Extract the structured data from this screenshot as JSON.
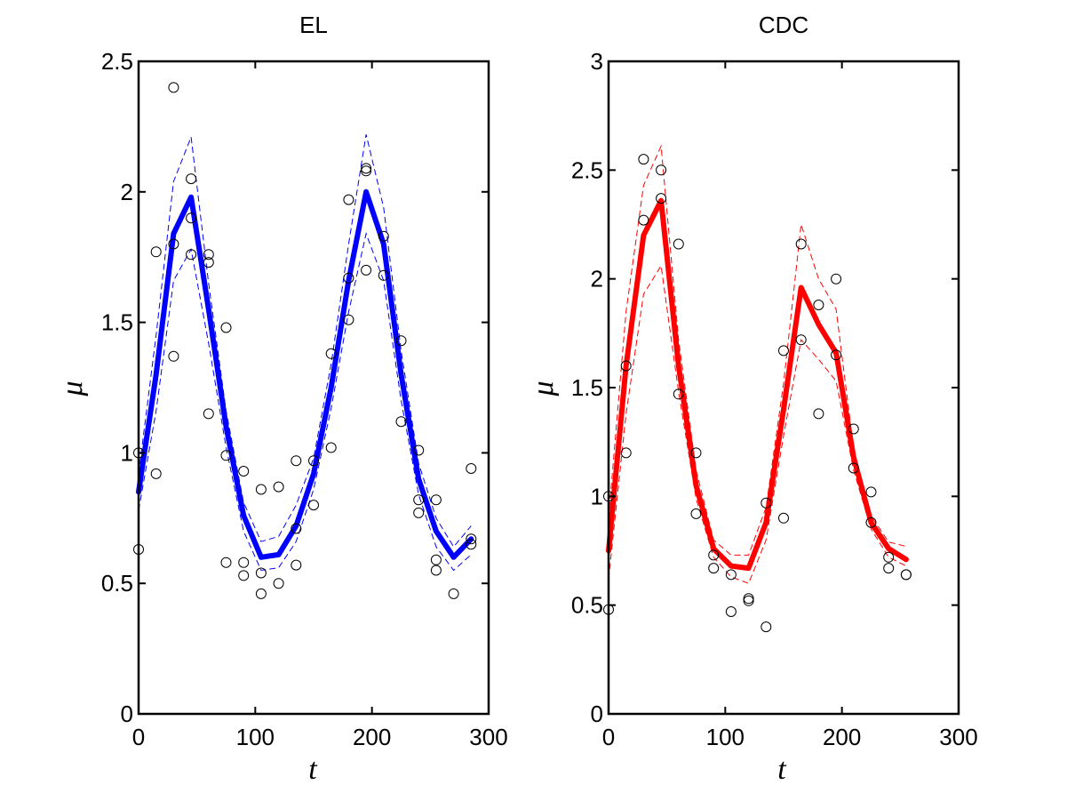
{
  "chart_data": [
    {
      "type": "line",
      "title": "EL",
      "xlabel": "t",
      "ylabel": "μ",
      "xlim": [
        0,
        300
      ],
      "ylim": [
        0,
        2.5
      ],
      "xticks": [
        "0",
        "100",
        "200",
        "300"
      ],
      "yticks": [
        "0",
        "0.5",
        "1",
        "1.5",
        "2",
        "2.5"
      ],
      "color": "#0000ff",
      "grid": false,
      "mean": {
        "x": [
          0,
          15,
          30,
          45,
          60,
          75,
          90,
          105,
          120,
          135,
          150,
          165,
          180,
          195,
          210,
          225,
          240,
          255,
          270,
          285
        ],
        "y": [
          0.85,
          1.3,
          1.84,
          1.98,
          1.55,
          1.1,
          0.76,
          0.6,
          0.61,
          0.72,
          0.92,
          1.25,
          1.66,
          2.0,
          1.8,
          1.3,
          0.9,
          0.7,
          0.6,
          0.67
        ]
      },
      "upper": {
        "x": [
          0,
          15,
          30,
          45,
          60,
          75,
          90,
          105,
          120,
          135,
          150,
          165,
          180,
          195,
          210,
          225,
          240,
          255,
          270,
          285
        ],
        "y": [
          0.92,
          1.45,
          2.04,
          2.21,
          1.65,
          1.16,
          0.81,
          0.66,
          0.68,
          0.8,
          0.98,
          1.34,
          1.8,
          2.22,
          1.94,
          1.39,
          0.96,
          0.75,
          0.64,
          0.72
        ]
      },
      "lower": {
        "x": [
          0,
          15,
          30,
          45,
          60,
          75,
          90,
          105,
          120,
          135,
          150,
          165,
          180,
          195,
          210,
          225,
          240,
          255,
          270,
          285
        ],
        "y": [
          0.78,
          1.16,
          1.66,
          1.78,
          1.42,
          1.02,
          0.7,
          0.55,
          0.56,
          0.66,
          0.86,
          1.17,
          1.54,
          1.84,
          1.66,
          1.2,
          0.84,
          0.64,
          0.55,
          0.61
        ]
      },
      "observations": {
        "x": [
          0,
          0,
          15,
          15,
          30,
          30,
          30,
          45,
          45,
          45,
          60,
          60,
          60,
          75,
          75,
          75,
          90,
          90,
          90,
          105,
          105,
          105,
          120,
          120,
          135,
          135,
          135,
          150,
          150,
          165,
          165,
          180,
          180,
          180,
          195,
          195,
          195,
          210,
          210,
          225,
          225,
          240,
          240,
          240,
          255,
          255,
          255,
          270,
          285,
          285,
          285
        ],
        "y": [
          1.0,
          0.63,
          1.77,
          0.92,
          2.4,
          1.8,
          1.37,
          2.05,
          1.9,
          1.76,
          1.76,
          1.73,
          1.15,
          1.48,
          0.99,
          0.58,
          0.93,
          0.58,
          0.53,
          0.86,
          0.54,
          0.46,
          0.87,
          0.5,
          0.97,
          0.71,
          0.57,
          0.97,
          0.8,
          1.38,
          1.02,
          1.97,
          1.67,
          1.51,
          2.09,
          2.08,
          1.7,
          1.83,
          1.68,
          1.43,
          1.12,
          1.01,
          0.82,
          0.77,
          0.82,
          0.59,
          0.55,
          0.46,
          0.94,
          0.67,
          0.65
        ]
      }
    },
    {
      "type": "line",
      "title": "CDC",
      "xlabel": "t",
      "ylabel": "μ",
      "xlim": [
        0,
        300
      ],
      "ylim": [
        0,
        3
      ],
      "xticks": [
        "0",
        "100",
        "200",
        "300"
      ],
      "yticks": [
        "0",
        "0.5",
        "1",
        "1.5",
        "2",
        "2.5",
        "3"
      ],
      "color": "#ff0000",
      "grid": false,
      "mean": {
        "x": [
          0,
          15,
          30,
          45,
          60,
          75,
          90,
          105,
          120,
          135,
          150,
          165,
          180,
          195,
          210,
          225,
          240,
          255
        ],
        "y": [
          0.75,
          1.6,
          2.2,
          2.36,
          1.6,
          1.05,
          0.76,
          0.68,
          0.67,
          0.88,
          1.4,
          1.96,
          1.79,
          1.66,
          1.18,
          0.88,
          0.76,
          0.71
        ]
      },
      "upper": {
        "x": [
          0,
          15,
          30,
          45,
          60,
          75,
          90,
          105,
          120,
          135,
          150,
          165,
          180,
          195,
          210,
          225,
          240,
          255
        ],
        "y": [
          0.9,
          1.85,
          2.43,
          2.61,
          1.72,
          1.12,
          0.8,
          0.73,
          0.73,
          0.95,
          1.52,
          2.25,
          2.0,
          1.86,
          1.22,
          0.91,
          0.79,
          0.77
        ]
      },
      "lower": {
        "x": [
          0,
          15,
          30,
          45,
          60,
          75,
          90,
          105,
          120,
          135,
          150,
          165,
          180,
          195,
          210,
          225,
          240,
          255
        ],
        "y": [
          0.62,
          1.38,
          1.93,
          2.06,
          1.48,
          0.99,
          0.72,
          0.63,
          0.6,
          0.8,
          1.28,
          1.72,
          1.63,
          1.53,
          1.12,
          0.85,
          0.72,
          0.68
        ]
      },
      "observations": {
        "x": [
          0,
          0,
          15,
          15,
          30,
          30,
          45,
          45,
          60,
          60,
          75,
          75,
          90,
          90,
          105,
          105,
          120,
          120,
          135,
          135,
          150,
          150,
          165,
          165,
          180,
          180,
          195,
          195,
          210,
          210,
          225,
          225,
          240,
          240,
          255,
          255
        ],
        "y": [
          1.0,
          0.48,
          1.6,
          1.2,
          2.55,
          2.27,
          2.5,
          2.37,
          2.16,
          1.47,
          1.2,
          0.92,
          0.73,
          0.67,
          0.64,
          0.47,
          0.53,
          0.52,
          0.97,
          0.4,
          1.67,
          0.9,
          2.16,
          1.72,
          1.88,
          1.38,
          2.0,
          1.65,
          1.31,
          1.13,
          1.02,
          0.88,
          0.72,
          0.67,
          0.64,
          0.64
        ]
      }
    }
  ]
}
